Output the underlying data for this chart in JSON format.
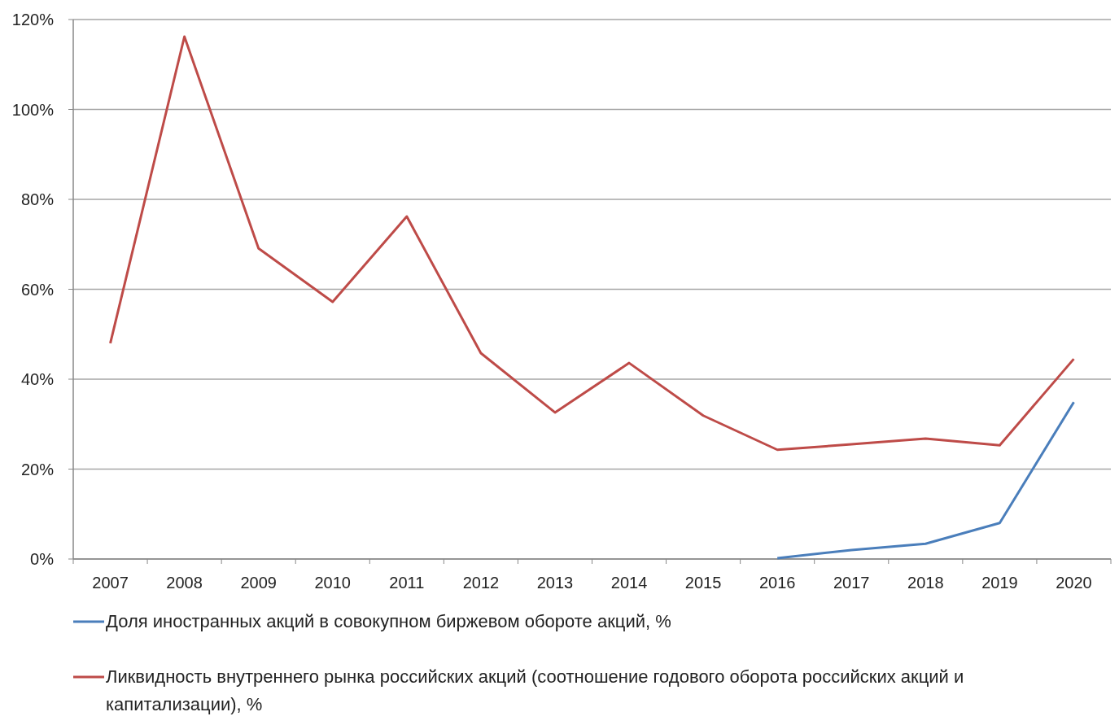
{
  "chart_data": {
    "type": "line",
    "categories": [
      "2007",
      "2008",
      "2009",
      "2010",
      "2011",
      "2012",
      "2013",
      "2014",
      "2015",
      "2016",
      "2017",
      "2018",
      "2019",
      "2020"
    ],
    "series": [
      {
        "name": "Доля иностранных акций в совокупном биржевом обороте акций, %",
        "color": "#4a7ebb",
        "values": [
          null,
          null,
          null,
          null,
          null,
          null,
          null,
          null,
          null,
          0.2,
          2.0,
          3.4,
          8.0,
          34.9
        ]
      },
      {
        "name": "Ликвидность внутреннего рынка российских акций (соотношение годового оборота российских акций и капитализации), %",
        "color": "#be4b48",
        "values": [
          48.0,
          116.2,
          69.1,
          57.2,
          76.2,
          45.8,
          32.6,
          43.6,
          31.9,
          24.3,
          25.5,
          26.8,
          25.3,
          44.5
        ]
      }
    ],
    "ylim": [
      0,
      120
    ],
    "yticks": [
      {
        "value": 0,
        "label": "0%"
      },
      {
        "value": 20,
        "label": "20%"
      },
      {
        "value": 40,
        "label": "40%"
      },
      {
        "value": 60,
        "label": "60%"
      },
      {
        "value": 80,
        "label": "80%"
      },
      {
        "value": 100,
        "label": "100%"
      },
      {
        "value": 120,
        "label": "120%"
      }
    ],
    "grid": "y",
    "legend": "bottom",
    "marker": "none",
    "line_style": "solid"
  }
}
